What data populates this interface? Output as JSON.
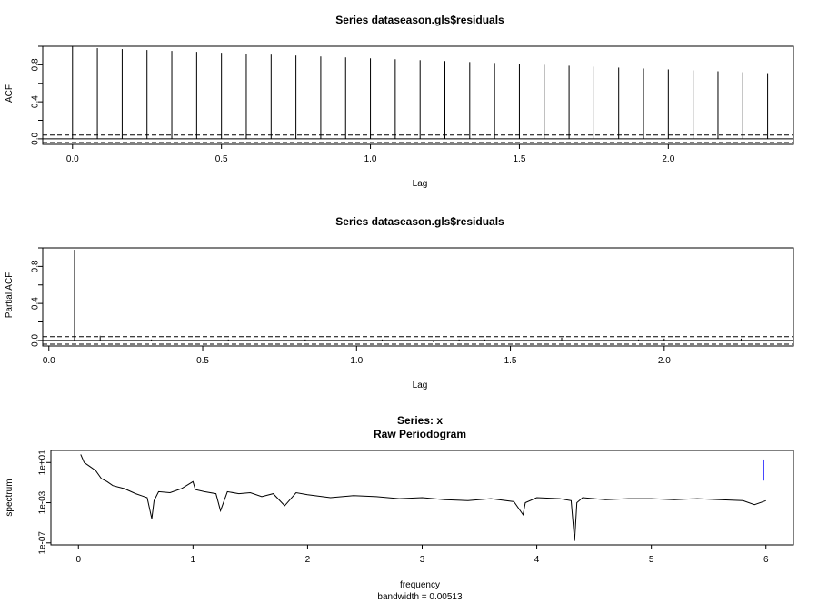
{
  "colors": {
    "axis": "#000000",
    "spike": "#000000",
    "ci": "#000000",
    "spectrum": "#000000",
    "bandwidth_bar": "#0000ff"
  },
  "chart_data": [
    {
      "type": "bar",
      "title": "Series  dataseason.gls$residuals",
      "xlabel": "Lag",
      "ylabel": "ACF",
      "xlim": [
        -0.1,
        2.42
      ],
      "ylim": [
        -0.06,
        1.0
      ],
      "xticks": [
        "0.0",
        "0.5",
        "1.0",
        "1.5",
        "2.0"
      ],
      "yticks": [
        "0.0",
        "0.4",
        "0.8"
      ],
      "ci": 0.04,
      "x": [
        0.0,
        0.0833,
        0.1667,
        0.25,
        0.3333,
        0.4167,
        0.5,
        0.5833,
        0.6667,
        0.75,
        0.8333,
        0.9167,
        1.0,
        1.0833,
        1.1667,
        1.25,
        1.3333,
        1.4167,
        1.5,
        1.5833,
        1.6667,
        1.75,
        1.8333,
        1.9167,
        2.0,
        2.0833,
        2.1667,
        2.25,
        2.3333
      ],
      "values": [
        1.0,
        0.98,
        0.97,
        0.96,
        0.95,
        0.94,
        0.93,
        0.92,
        0.91,
        0.9,
        0.89,
        0.88,
        0.87,
        0.86,
        0.85,
        0.84,
        0.83,
        0.82,
        0.81,
        0.8,
        0.79,
        0.78,
        0.77,
        0.76,
        0.75,
        0.74,
        0.73,
        0.72,
        0.71
      ]
    },
    {
      "type": "bar",
      "title": "Series  dataseason.gls$residuals",
      "xlabel": "Lag",
      "ylabel": "Partial ACF",
      "xlim": [
        -0.02,
        2.42
      ],
      "ylim": [
        -0.06,
        1.0
      ],
      "xticks": [
        "0.0",
        "0.5",
        "1.0",
        "1.5",
        "2.0"
      ],
      "yticks": [
        "0.0",
        "0.4",
        "0.8"
      ],
      "ci": 0.04,
      "x": [
        0.0833,
        0.1667,
        0.25,
        0.3333,
        0.4167,
        0.5,
        0.5833,
        0.6667,
        0.75,
        0.8333,
        0.9167,
        1.0,
        1.0833,
        1.1667,
        1.25,
        1.3333,
        1.4167,
        1.5,
        1.5833,
        1.6667,
        1.75,
        1.8333,
        1.9167,
        2.0,
        2.0833,
        2.1667,
        2.25,
        2.3333
      ],
      "values": [
        0.98,
        0.05,
        -0.01,
        0.01,
        -0.01,
        0.0,
        0.01,
        0.03,
        -0.01,
        0.01,
        0.0,
        -0.01,
        0.01,
        0.0,
        -0.02,
        0.01,
        0.01,
        -0.01,
        0.0,
        0.03,
        0.0,
        -0.01,
        0.01,
        0.02,
        -0.01,
        0.0,
        0.02,
        -0.01
      ]
    },
    {
      "type": "line",
      "title": "Series: x",
      "subtitle": "Raw Periodogram",
      "xlabel": "frequency",
      "xsub": "bandwidth = 0.00513",
      "ylabel": "spectrum",
      "log_y": true,
      "xlim": [
        -0.24,
        6.24
      ],
      "ylim_log10": [
        -7.2,
        2.2
      ],
      "xticks": [
        "0",
        "1",
        "2",
        "3",
        "4",
        "5",
        "6"
      ],
      "yticks": [
        "1e-07",
        "1e-03",
        "1e+01"
      ],
      "bandwidth_bar": {
        "x": 5.98,
        "log10_range": [
          -0.8,
          1.3
        ]
      },
      "x": [
        0.02,
        0.05,
        0.1,
        0.15,
        0.2,
        0.25,
        0.3,
        0.4,
        0.5,
        0.55,
        0.6,
        0.64,
        0.66,
        0.7,
        0.8,
        0.9,
        1.0,
        1.02,
        1.1,
        1.2,
        1.24,
        1.3,
        1.4,
        1.5,
        1.6,
        1.7,
        1.8,
        1.9,
        2.0,
        2.2,
        2.4,
        2.6,
        2.8,
        3.0,
        3.2,
        3.4,
        3.6,
        3.8,
        3.88,
        3.9,
        4.0,
        4.2,
        4.3,
        4.33,
        4.35,
        4.4,
        4.6,
        4.8,
        5.0,
        5.2,
        5.4,
        5.6,
        5.8,
        5.9,
        6.0
      ],
      "values_log10": [
        1.8,
        1.0,
        0.6,
        0.2,
        -0.6,
        -0.9,
        -1.3,
        -1.6,
        -2.1,
        -2.3,
        -2.5,
        -4.6,
        -2.8,
        -1.9,
        -2.0,
        -1.6,
        -0.9,
        -1.7,
        -1.9,
        -2.1,
        -3.8,
        -1.9,
        -2.1,
        -2.0,
        -2.4,
        -2.1,
        -3.3,
        -2.0,
        -2.2,
        -2.5,
        -2.3,
        -2.4,
        -2.6,
        -2.5,
        -2.7,
        -2.8,
        -2.6,
        -2.9,
        -4.2,
        -3.0,
        -2.5,
        -2.6,
        -2.8,
        -6.8,
        -3.0,
        -2.5,
        -2.7,
        -2.6,
        -2.6,
        -2.7,
        -2.6,
        -2.7,
        -2.8,
        -3.2,
        -2.8
      ]
    }
  ]
}
